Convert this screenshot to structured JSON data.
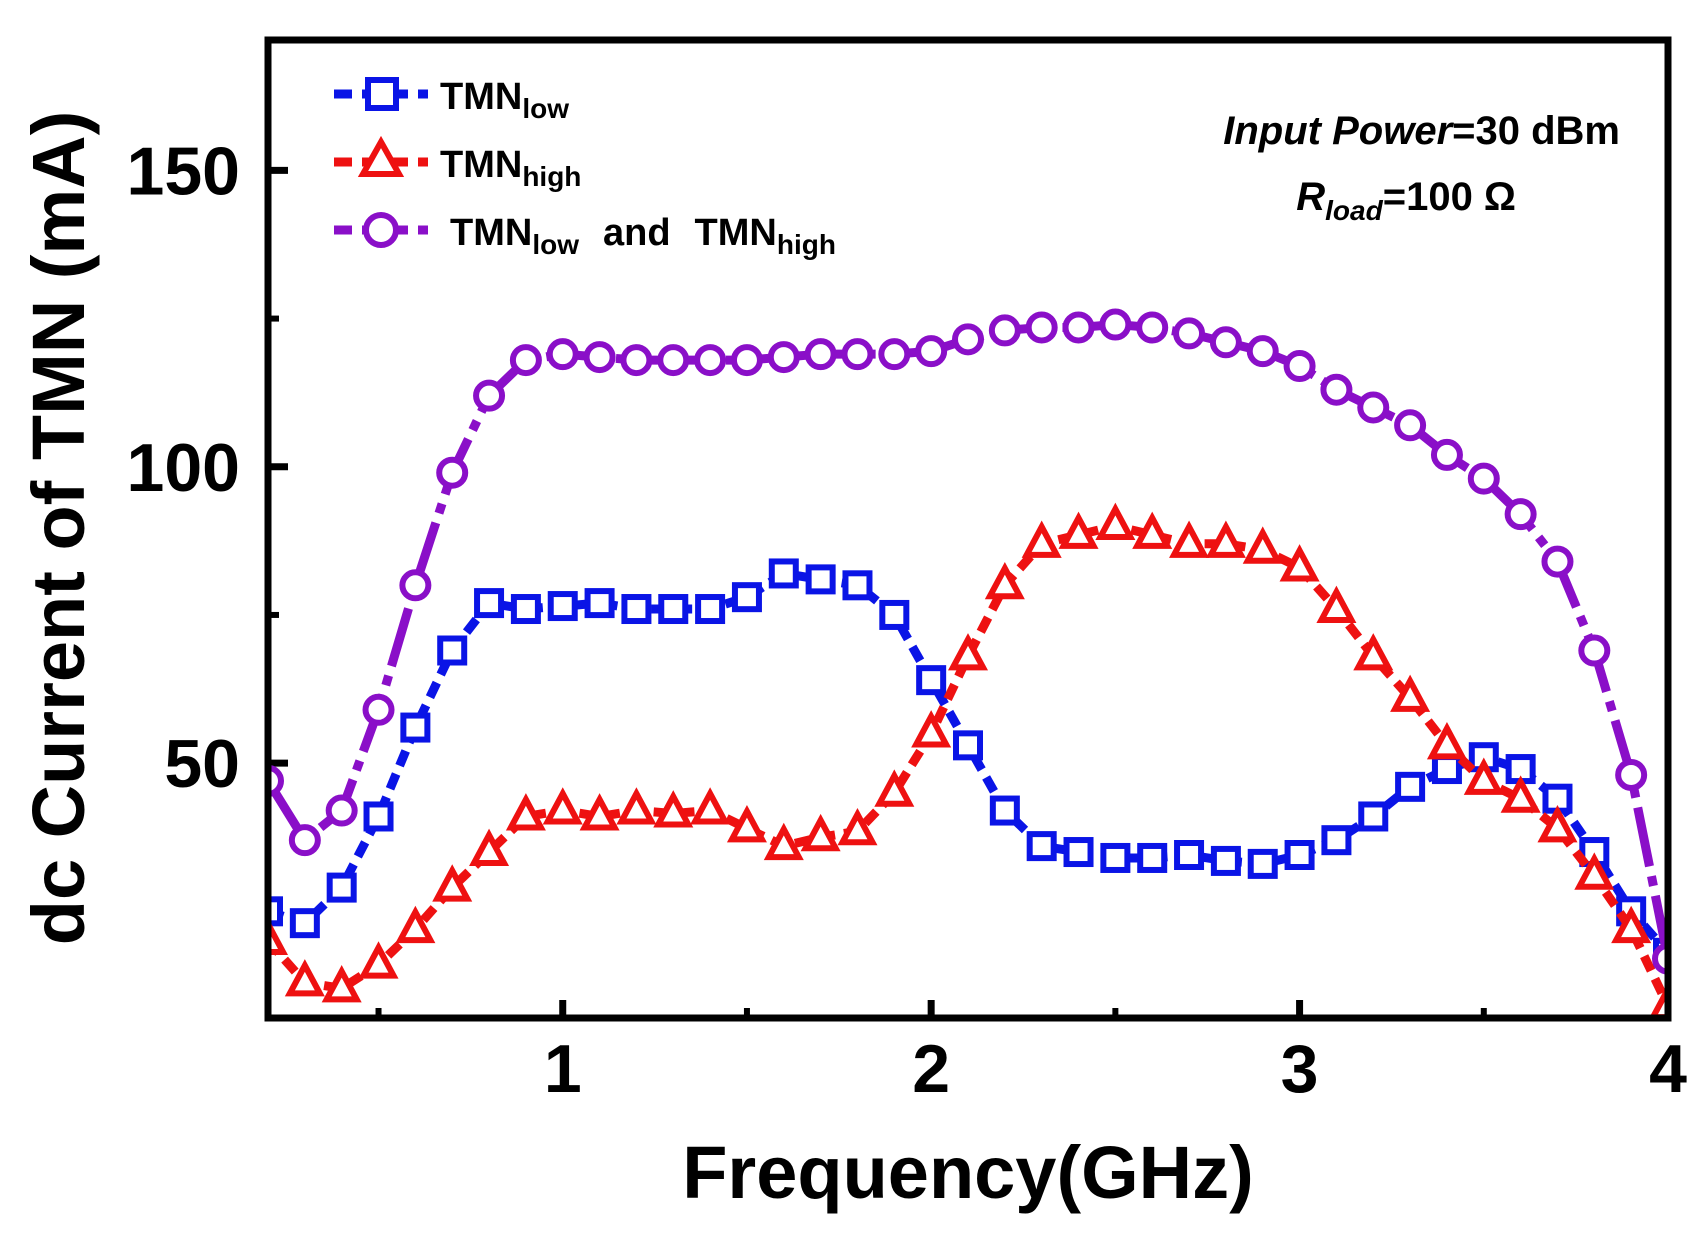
{
  "chart_data": {
    "type": "line",
    "xlabel": "Frequency(GHz)",
    "ylabel": "dc Current of TMN (mA)",
    "xlim": [
      0.2,
      4.0
    ],
    "ylim": [
      7,
      172
    ],
    "xticks": [
      1,
      2,
      3,
      4
    ],
    "yticks": [
      50,
      100,
      150
    ],
    "grid": false,
    "legend_position": "top-left",
    "annotations": {
      "line1_italic": "Input Power",
      "line1_rest": "=30 dBm",
      "line2_main": "R",
      "line2_sub": "load",
      "line2_rest": "=100 Ω"
    },
    "series": [
      {
        "name_main": "TMN",
        "name_sub": "low",
        "color": "#0a14e6",
        "marker": "square",
        "points": [
          [
            0.2,
            25
          ],
          [
            0.3,
            23
          ],
          [
            0.4,
            29
          ],
          [
            0.5,
            41
          ],
          [
            0.6,
            56
          ],
          [
            0.7,
            69
          ],
          [
            0.8,
            77
          ],
          [
            0.9,
            76
          ],
          [
            1.0,
            76.5
          ],
          [
            1.1,
            77
          ],
          [
            1.2,
            76
          ],
          [
            1.3,
            76
          ],
          [
            1.4,
            76
          ],
          [
            1.5,
            78
          ],
          [
            1.6,
            82
          ],
          [
            1.7,
            81
          ],
          [
            1.8,
            80
          ],
          [
            1.9,
            75
          ],
          [
            2.0,
            64
          ],
          [
            2.1,
            53
          ],
          [
            2.2,
            42
          ],
          [
            2.3,
            36
          ],
          [
            2.4,
            35
          ],
          [
            2.5,
            34
          ],
          [
            2.6,
            34
          ],
          [
            2.7,
            34.5
          ],
          [
            2.8,
            33.5
          ],
          [
            2.9,
            33
          ],
          [
            3.0,
            34.5
          ],
          [
            3.1,
            37
          ],
          [
            3.2,
            41
          ],
          [
            3.3,
            46
          ],
          [
            3.4,
            49
          ],
          [
            3.5,
            51
          ],
          [
            3.6,
            49
          ],
          [
            3.7,
            44
          ],
          [
            3.8,
            35
          ],
          [
            3.9,
            25
          ],
          [
            4.0,
            18
          ]
        ]
      },
      {
        "name_main": "TMN",
        "name_sub": "high",
        "color": "#ee1111",
        "marker": "triangle",
        "points": [
          [
            0.2,
            20
          ],
          [
            0.3,
            13
          ],
          [
            0.4,
            12
          ],
          [
            0.5,
            16
          ],
          [
            0.6,
            22
          ],
          [
            0.7,
            29
          ],
          [
            0.8,
            35
          ],
          [
            0.9,
            41
          ],
          [
            1.0,
            42
          ],
          [
            1.1,
            41
          ],
          [
            1.2,
            42
          ],
          [
            1.3,
            41.5
          ],
          [
            1.4,
            42
          ],
          [
            1.5,
            39
          ],
          [
            1.6,
            36
          ],
          [
            1.7,
            37.5
          ],
          [
            1.8,
            38.5
          ],
          [
            1.9,
            45
          ],
          [
            2.0,
            55
          ],
          [
            2.1,
            68
          ],
          [
            2.2,
            80
          ],
          [
            2.3,
            87
          ],
          [
            2.4,
            88.5
          ],
          [
            2.5,
            90
          ],
          [
            2.6,
            88.5
          ],
          [
            2.7,
            87
          ],
          [
            2.8,
            87
          ],
          [
            2.9,
            86
          ],
          [
            3.0,
            83
          ],
          [
            3.1,
            76
          ],
          [
            3.2,
            68
          ],
          [
            3.3,
            61
          ],
          [
            3.4,
            53
          ],
          [
            3.5,
            47
          ],
          [
            3.6,
            44
          ],
          [
            3.7,
            39
          ],
          [
            3.8,
            31
          ],
          [
            3.9,
            22
          ],
          [
            4.0,
            9
          ]
        ]
      },
      {
        "name_main": "TMN",
        "name_sub": "low",
        "name_mid": "and",
        "name_main2": "TMN",
        "name_sub2": "high",
        "color": "#8a0fc8",
        "marker": "circle",
        "points": [
          [
            0.2,
            47
          ],
          [
            0.3,
            37
          ],
          [
            0.4,
            42
          ],
          [
            0.5,
            59
          ],
          [
            0.6,
            80
          ],
          [
            0.7,
            99
          ],
          [
            0.8,
            112
          ],
          [
            0.9,
            118
          ],
          [
            1.0,
            119
          ],
          [
            1.1,
            118.5
          ],
          [
            1.2,
            118
          ],
          [
            1.3,
            118
          ],
          [
            1.4,
            118
          ],
          [
            1.5,
            118
          ],
          [
            1.6,
            118.5
          ],
          [
            1.7,
            119
          ],
          [
            1.8,
            119
          ],
          [
            1.9,
            119
          ],
          [
            2.0,
            119.5
          ],
          [
            2.1,
            121.5
          ],
          [
            2.2,
            123
          ],
          [
            2.3,
            123.5
          ],
          [
            2.4,
            123.5
          ],
          [
            2.5,
            124
          ],
          [
            2.6,
            123.5
          ],
          [
            2.7,
            122.5
          ],
          [
            2.8,
            121
          ],
          [
            2.9,
            119.5
          ],
          [
            3.0,
            117
          ],
          [
            3.1,
            113
          ],
          [
            3.2,
            110
          ],
          [
            3.3,
            107
          ],
          [
            3.4,
            102
          ],
          [
            3.5,
            98
          ],
          [
            3.6,
            92
          ],
          [
            3.7,
            84
          ],
          [
            3.8,
            69
          ],
          [
            3.9,
            48
          ],
          [
            4.0,
            17
          ]
        ]
      }
    ]
  }
}
